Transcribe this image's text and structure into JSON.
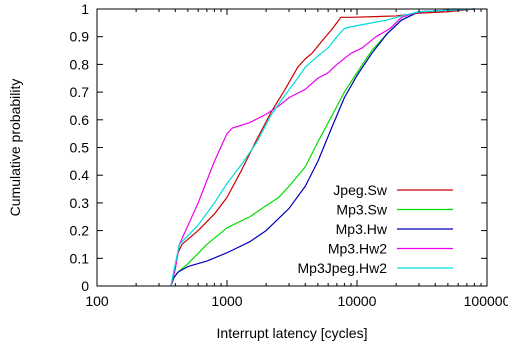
{
  "chart_data": {
    "type": "line",
    "title": "",
    "xlabel": "Interrupt latency [cycles]",
    "ylabel": "Cumulative probability",
    "x_scale": "log",
    "xlim": [
      100,
      100000
    ],
    "ylim": [
      0,
      1
    ],
    "x_ticks": [
      100,
      1000,
      10000,
      100000
    ],
    "x_tick_labels": [
      "100",
      "1000",
      "10000",
      "100000"
    ],
    "y_ticks": [
      0,
      0.1,
      0.2,
      0.3,
      0.4,
      0.5,
      0.6,
      0.7,
      0.8,
      0.9,
      1
    ],
    "y_tick_labels": [
      "0",
      "0.1",
      "0.2",
      "0.3",
      "0.4",
      "0.5",
      "0.6",
      "0.7",
      "0.8",
      "0.9",
      "1"
    ],
    "grid": false,
    "legend_position": "bottom-right",
    "series": [
      {
        "name": "Jpeg.Sw",
        "color": "#cc0000",
        "points": [
          [
            370,
            0.0
          ],
          [
            390,
            0.05
          ],
          [
            420,
            0.12
          ],
          [
            450,
            0.15
          ],
          [
            600,
            0.2
          ],
          [
            800,
            0.26
          ],
          [
            1000,
            0.32
          ],
          [
            1300,
            0.42
          ],
          [
            1700,
            0.53
          ],
          [
            2200,
            0.63
          ],
          [
            2800,
            0.71
          ],
          [
            3500,
            0.79
          ],
          [
            4000,
            0.82
          ],
          [
            4500,
            0.84
          ],
          [
            5500,
            0.89
          ],
          [
            6500,
            0.93
          ],
          [
            7500,
            0.97
          ],
          [
            9000,
            0.97
          ],
          [
            20000,
            0.975
          ],
          [
            30000,
            0.985
          ],
          [
            50000,
            0.99
          ],
          [
            80000,
            1.0
          ]
        ]
      },
      {
        "name": "Mp3.Sw",
        "color": "#00dd00",
        "points": [
          [
            370,
            0.0
          ],
          [
            390,
            0.03
          ],
          [
            420,
            0.05
          ],
          [
            500,
            0.08
          ],
          [
            700,
            0.15
          ],
          [
            1000,
            0.21
          ],
          [
            1500,
            0.25
          ],
          [
            2000,
            0.29
          ],
          [
            2500,
            0.32
          ],
          [
            3000,
            0.36
          ],
          [
            4000,
            0.43
          ],
          [
            5000,
            0.52
          ],
          [
            6500,
            0.62
          ],
          [
            8000,
            0.7
          ],
          [
            10000,
            0.77
          ],
          [
            13000,
            0.85
          ],
          [
            17000,
            0.91
          ],
          [
            22000,
            0.96
          ],
          [
            30000,
            0.99
          ],
          [
            80000,
            1.0
          ]
        ]
      },
      {
        "name": "Mp3.Hw",
        "color": "#0000bb",
        "points": [
          [
            370,
            0.0
          ],
          [
            390,
            0.03
          ],
          [
            420,
            0.05
          ],
          [
            500,
            0.07
          ],
          [
            700,
            0.09
          ],
          [
            1000,
            0.12
          ],
          [
            1500,
            0.16
          ],
          [
            2000,
            0.2
          ],
          [
            3000,
            0.28
          ],
          [
            4000,
            0.36
          ],
          [
            5000,
            0.45
          ],
          [
            6500,
            0.58
          ],
          [
            8000,
            0.68
          ],
          [
            10000,
            0.76
          ],
          [
            13000,
            0.84
          ],
          [
            17000,
            0.91
          ],
          [
            22000,
            0.96
          ],
          [
            30000,
            0.99
          ],
          [
            80000,
            1.0
          ]
        ]
      },
      {
        "name": "Mp3.Hw2",
        "color": "#ee00ee",
        "points": [
          [
            370,
            0.0
          ],
          [
            400,
            0.06
          ],
          [
            430,
            0.15
          ],
          [
            600,
            0.3
          ],
          [
            800,
            0.45
          ],
          [
            1000,
            0.55
          ],
          [
            1100,
            0.57
          ],
          [
            1500,
            0.59
          ],
          [
            2000,
            0.62
          ],
          [
            2500,
            0.65
          ],
          [
            3000,
            0.68
          ],
          [
            4000,
            0.71
          ],
          [
            5000,
            0.75
          ],
          [
            6000,
            0.77
          ],
          [
            7000,
            0.8
          ],
          [
            9000,
            0.84
          ],
          [
            11000,
            0.86
          ],
          [
            14000,
            0.9
          ],
          [
            18000,
            0.93
          ],
          [
            22000,
            0.97
          ],
          [
            30000,
            0.99
          ],
          [
            80000,
            1.0
          ]
        ]
      },
      {
        "name": "Mp3Jpeg.Hw2",
        "color": "#00dddd",
        "points": [
          [
            370,
            0.0
          ],
          [
            400,
            0.08
          ],
          [
            430,
            0.15
          ],
          [
            600,
            0.22
          ],
          [
            800,
            0.3
          ],
          [
            1000,
            0.37
          ],
          [
            1300,
            0.44
          ],
          [
            1700,
            0.52
          ],
          [
            2200,
            0.62
          ],
          [
            2800,
            0.69
          ],
          [
            3500,
            0.75
          ],
          [
            4000,
            0.79
          ],
          [
            5000,
            0.83
          ],
          [
            6000,
            0.86
          ],
          [
            7000,
            0.9
          ],
          [
            8000,
            0.93
          ],
          [
            10000,
            0.94
          ],
          [
            13000,
            0.95
          ],
          [
            17000,
            0.96
          ],
          [
            22000,
            0.975
          ],
          [
            30000,
            0.99
          ],
          [
            80000,
            1.0
          ]
        ]
      }
    ]
  }
}
